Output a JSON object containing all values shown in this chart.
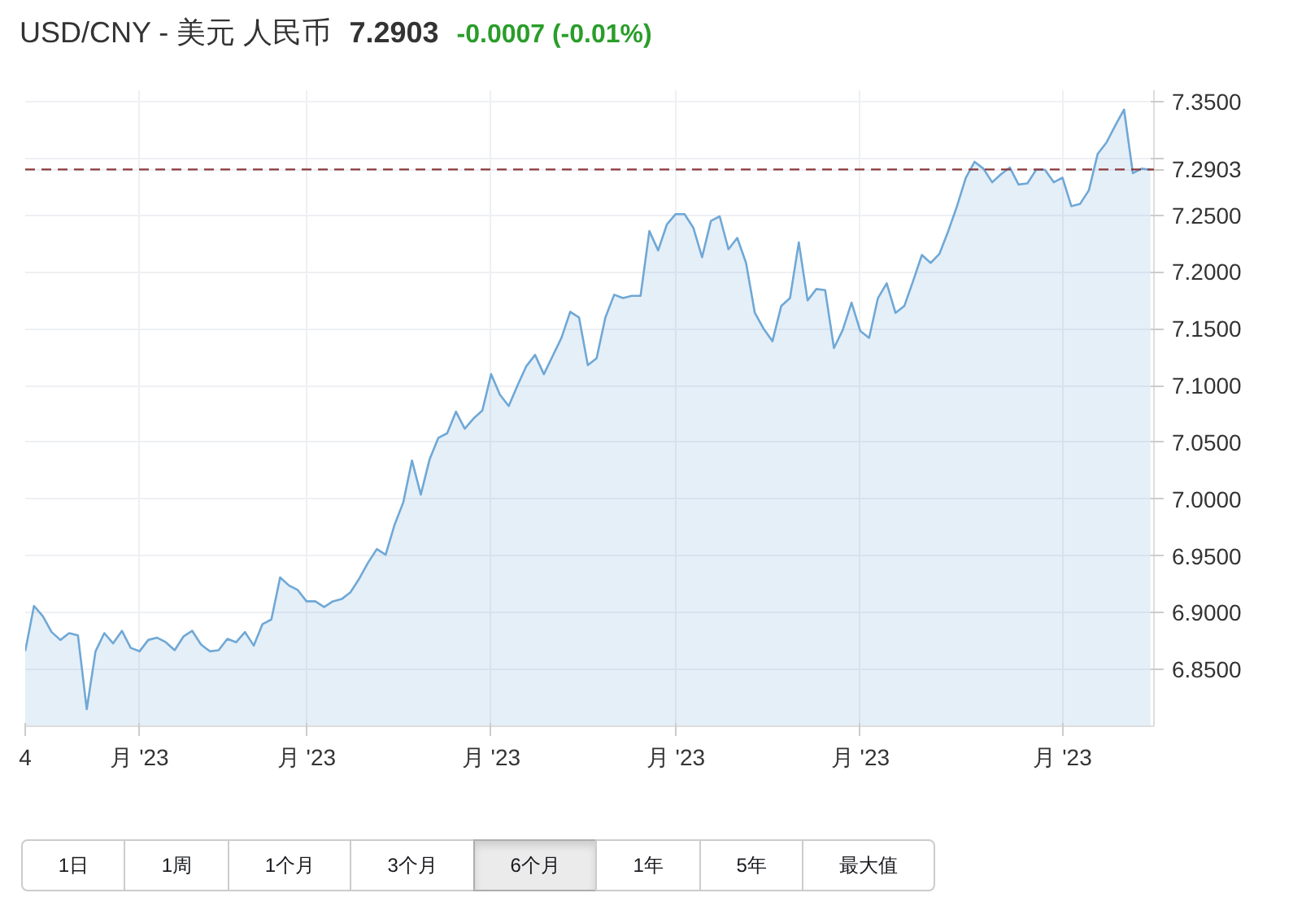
{
  "chart_data": {
    "type": "area",
    "title": "USD/CNY - 美元 人民币",
    "subtitle": "7.2903",
    "annotations": [
      "-0.0007 (-0.01%)",
      "1日",
      "1周",
      "1个月",
      "3个月",
      "6个月",
      "1年",
      "5年",
      "最大值"
    ],
    "categories": [
      "4",
      null,
      null,
      null,
      null,
      null,
      null,
      null,
      null,
      null,
      null,
      null,
      null,
      "月 '23",
      null,
      null,
      null,
      null,
      null,
      null,
      null,
      null,
      null,
      null,
      null,
      null,
      null,
      null,
      null,
      null,
      null,
      null,
      "月 '23",
      null,
      null,
      null,
      null,
      null,
      null,
      null,
      null,
      null,
      null,
      null,
      null,
      null,
      null,
      null,
      null,
      null,
      null,
      null,
      null,
      "月 '23",
      null,
      null,
      null,
      null,
      null,
      null,
      null,
      null,
      null,
      null,
      null,
      null,
      null,
      null,
      null,
      null,
      null,
      null,
      null,
      null,
      "月 '23",
      null,
      null,
      null,
      null,
      null,
      null,
      null,
      null,
      null,
      null,
      null,
      null,
      null,
      null,
      null,
      null,
      null,
      null,
      null,
      null,
      "月 '23",
      null,
      null,
      null,
      null,
      null,
      null,
      null,
      null,
      null,
      null,
      null,
      null,
      null,
      null,
      null,
      null,
      null,
      null,
      null,
      null,
      null,
      null,
      "月 '23",
      null,
      null,
      null,
      null,
      null,
      null,
      null,
      null,
      null,
      null
    ],
    "series": [
      {
        "color": "#6fa8d6",
        "values": [
          6.866,
          6.906,
          6.897,
          6.883,
          6.876,
          6.882,
          6.88,
          6.815,
          6.866,
          6.882,
          6.873,
          6.884,
          6.869,
          6.866,
          6.876,
          6.878,
          6.874,
          6.867,
          6.879,
          6.884,
          6.872,
          6.866,
          6.867,
          6.877,
          6.874,
          6.883,
          6.871,
          6.89,
          6.894,
          6.931,
          6.924,
          6.92,
          6.91,
          6.91,
          6.905,
          6.91,
          6.912,
          6.918,
          6.93,
          6.944,
          6.956,
          6.951,
          6.977,
          6.997,
          7.034,
          7.004,
          7.035,
          7.054,
          7.058,
          7.077,
          7.062,
          7.071,
          7.078,
          7.11,
          7.092,
          7.082,
          7.1,
          7.117,
          7.127,
          7.11,
          7.126,
          7.142,
          7.165,
          7.16,
          7.118,
          7.124,
          7.16,
          7.18,
          7.177,
          7.179,
          7.179,
          7.236,
          7.219,
          7.242,
          7.251,
          7.251,
          7.239,
          7.213,
          7.245,
          7.249,
          7.22,
          7.23,
          7.208,
          7.164,
          7.15,
          7.139,
          7.17,
          7.177,
          7.226,
          7.175,
          7.185,
          7.184,
          7.133,
          7.149,
          7.173,
          7.148,
          7.142,
          7.177,
          7.19,
          7.164,
          7.17,
          7.192,
          7.215,
          7.208,
          7.216,
          7.236,
          7.258,
          7.283,
          7.297,
          7.291,
          7.279,
          7.286,
          7.292,
          7.277,
          7.278,
          7.29,
          7.29,
          7.279,
          7.283,
          7.258,
          7.26,
          7.272,
          7.304,
          7.314,
          7.329,
          7.343,
          7.287,
          7.291,
          7.29
        ]
      }
    ],
    "ylim": [
      6.8,
      7.36
    ],
    "yticks": [
      {
        "value": 6.85,
        "label": "6.8500"
      },
      {
        "value": 6.9,
        "label": "6.9000"
      },
      {
        "value": 6.95,
        "label": "6.9500"
      },
      {
        "value": 7.0,
        "label": "7.0000"
      },
      {
        "value": 7.05,
        "label": "7.0500"
      },
      {
        "value": 7.1,
        "label": "7.1000"
      },
      {
        "value": 7.15,
        "label": "7.1500"
      },
      {
        "value": 7.2,
        "label": "7.2000"
      },
      {
        "value": 7.25,
        "label": "7.2500"
      },
      {
        "value": 7.3,
        "label": null
      },
      {
        "value": 7.35,
        "label": "7.3500"
      }
    ],
    "ref_lines": [
      {
        "axis": "y",
        "value": 7.2903,
        "label": "7.2903",
        "color": "#8b3a3a",
        "line_style": "dashed"
      }
    ],
    "grid": true
  }
}
